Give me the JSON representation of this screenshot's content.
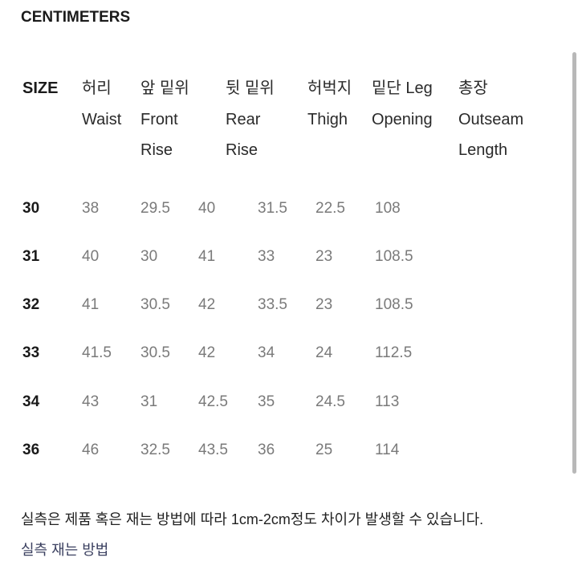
{
  "title": "CENTIMETERS",
  "table": {
    "size_header": "SIZE",
    "headers": [
      {
        "line1": "허리",
        "line2": "Waist",
        "line3": ""
      },
      {
        "line1": "앞 밑위",
        "line2": "Front",
        "line3": "Rise"
      },
      {
        "line1": "뒷 밑위",
        "line2": "Rear",
        "line3": "Rise"
      },
      {
        "line1": "허벅지",
        "line2": "Thigh",
        "line3": ""
      },
      {
        "line1": "밑단 Leg",
        "line2": "Opening",
        "line3": ""
      },
      {
        "line1": "총장",
        "line2": "Outseam",
        "line3": "Length"
      }
    ],
    "rows": [
      {
        "size": "30",
        "values": [
          "38",
          "29.5",
          "40",
          "31.5",
          "22.5",
          "108"
        ]
      },
      {
        "size": "31",
        "values": [
          "40",
          "30",
          "41",
          "33",
          "23",
          "108.5"
        ]
      },
      {
        "size": "32",
        "values": [
          "41",
          "30.5",
          "42",
          "33.5",
          "23",
          "108.5"
        ]
      },
      {
        "size": "33",
        "values": [
          "41.5",
          "30.5",
          "42",
          "34",
          "24",
          "112.5"
        ]
      },
      {
        "size": "34",
        "values": [
          "43",
          "31",
          "42.5",
          "35",
          "24.5",
          "113"
        ]
      },
      {
        "size": "36",
        "values": [
          "46",
          "32.5",
          "43.5",
          "36",
          "25",
          "114"
        ]
      }
    ]
  },
  "note": "실측은 제품 혹은 재는 방법에 따라 1cm-2cm정도 차이가 발생할 수 있습니다.",
  "measure_link": "실측 재는 방법",
  "colors": {
    "link": "#3b4060",
    "value": "#7a7a7a"
  }
}
